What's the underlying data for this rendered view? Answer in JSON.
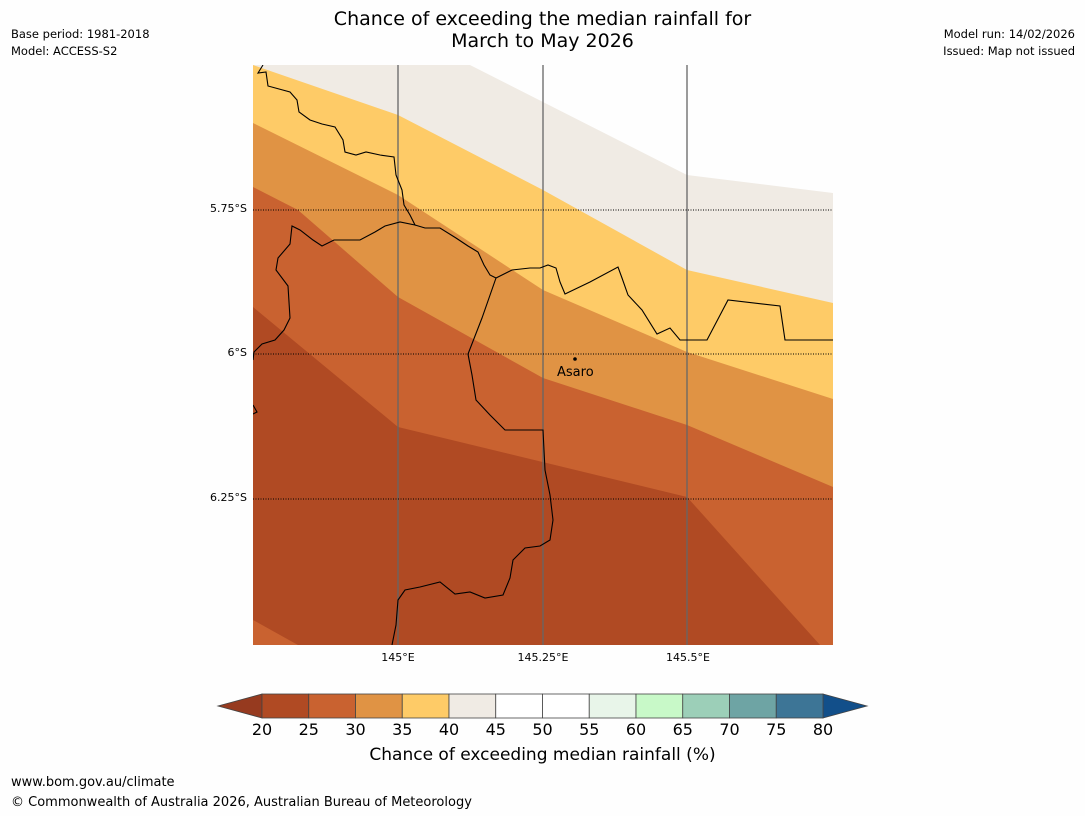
{
  "title": {
    "line1": "Chance of exceeding the median rainfall for",
    "line2": "March to May 2026"
  },
  "meta": {
    "base_period": "Base period: 1981-2018",
    "model": "Model: ACCESS-S2",
    "model_run": "Model run: 14/02/2026",
    "issued": "Issued: Map not issued"
  },
  "map": {
    "latitude_labels": [
      "5.75°S",
      "6°S",
      "6.25°S"
    ],
    "longitude_labels": [
      "145°E",
      "145.25°E",
      "145.5°E"
    ],
    "place": {
      "name": "Asaro",
      "lon": 145.28,
      "lat": -6.01
    }
  },
  "colorbar": {
    "ticks": [
      "20",
      "25",
      "30",
      "35",
      "40",
      "45",
      "50",
      "55",
      "60",
      "65",
      "70",
      "75",
      "80"
    ],
    "colors": [
      "#b04a23",
      "#c96230",
      "#e09344",
      "#fecb67",
      "#f0ebe4",
      "#ffffff",
      "#ffffff",
      "#e8f5e9",
      "#c8f9c8",
      "#9ccfb8",
      "#6ea4a4",
      "#3d7596"
    ],
    "under_color": "#963a1f",
    "over_color": "#124f8a",
    "caption": "Chance of exceeding median rainfall (%)"
  },
  "colors": {
    "band_20_25": "#b04a23",
    "band_25_30": "#c96230",
    "band_30_35": "#e09344",
    "band_35_40": "#fecb67",
    "band_40_45": "#f0ebe4"
  },
  "footer": {
    "url": "www.bom.gov.au/climate",
    "copyright": "© Commonwealth of Australia 2026, Australian Bureau of Meteorology"
  }
}
